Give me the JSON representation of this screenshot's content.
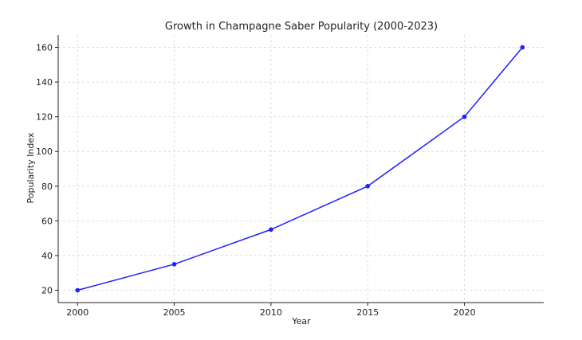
{
  "chart_data": {
    "type": "line",
    "title": "Growth in Champagne Saber Popularity (2000-2023)",
    "xlabel": "Year",
    "ylabel": "Popularity Index",
    "x": [
      2000,
      2005,
      2010,
      2015,
      2020,
      2023
    ],
    "series": [
      {
        "values": [
          20,
          35,
          55,
          80,
          120,
          160
        ]
      }
    ],
    "xlim": [
      1999,
      2024.1
    ],
    "ylim": [
      12.9,
      167.1
    ],
    "xticks": [
      2000,
      2005,
      2010,
      2015,
      2020
    ],
    "yticks": [
      20,
      40,
      60,
      80,
      100,
      120,
      140,
      160
    ],
    "grid": true,
    "line_color": "#1f1fff",
    "marker": "circle"
  }
}
